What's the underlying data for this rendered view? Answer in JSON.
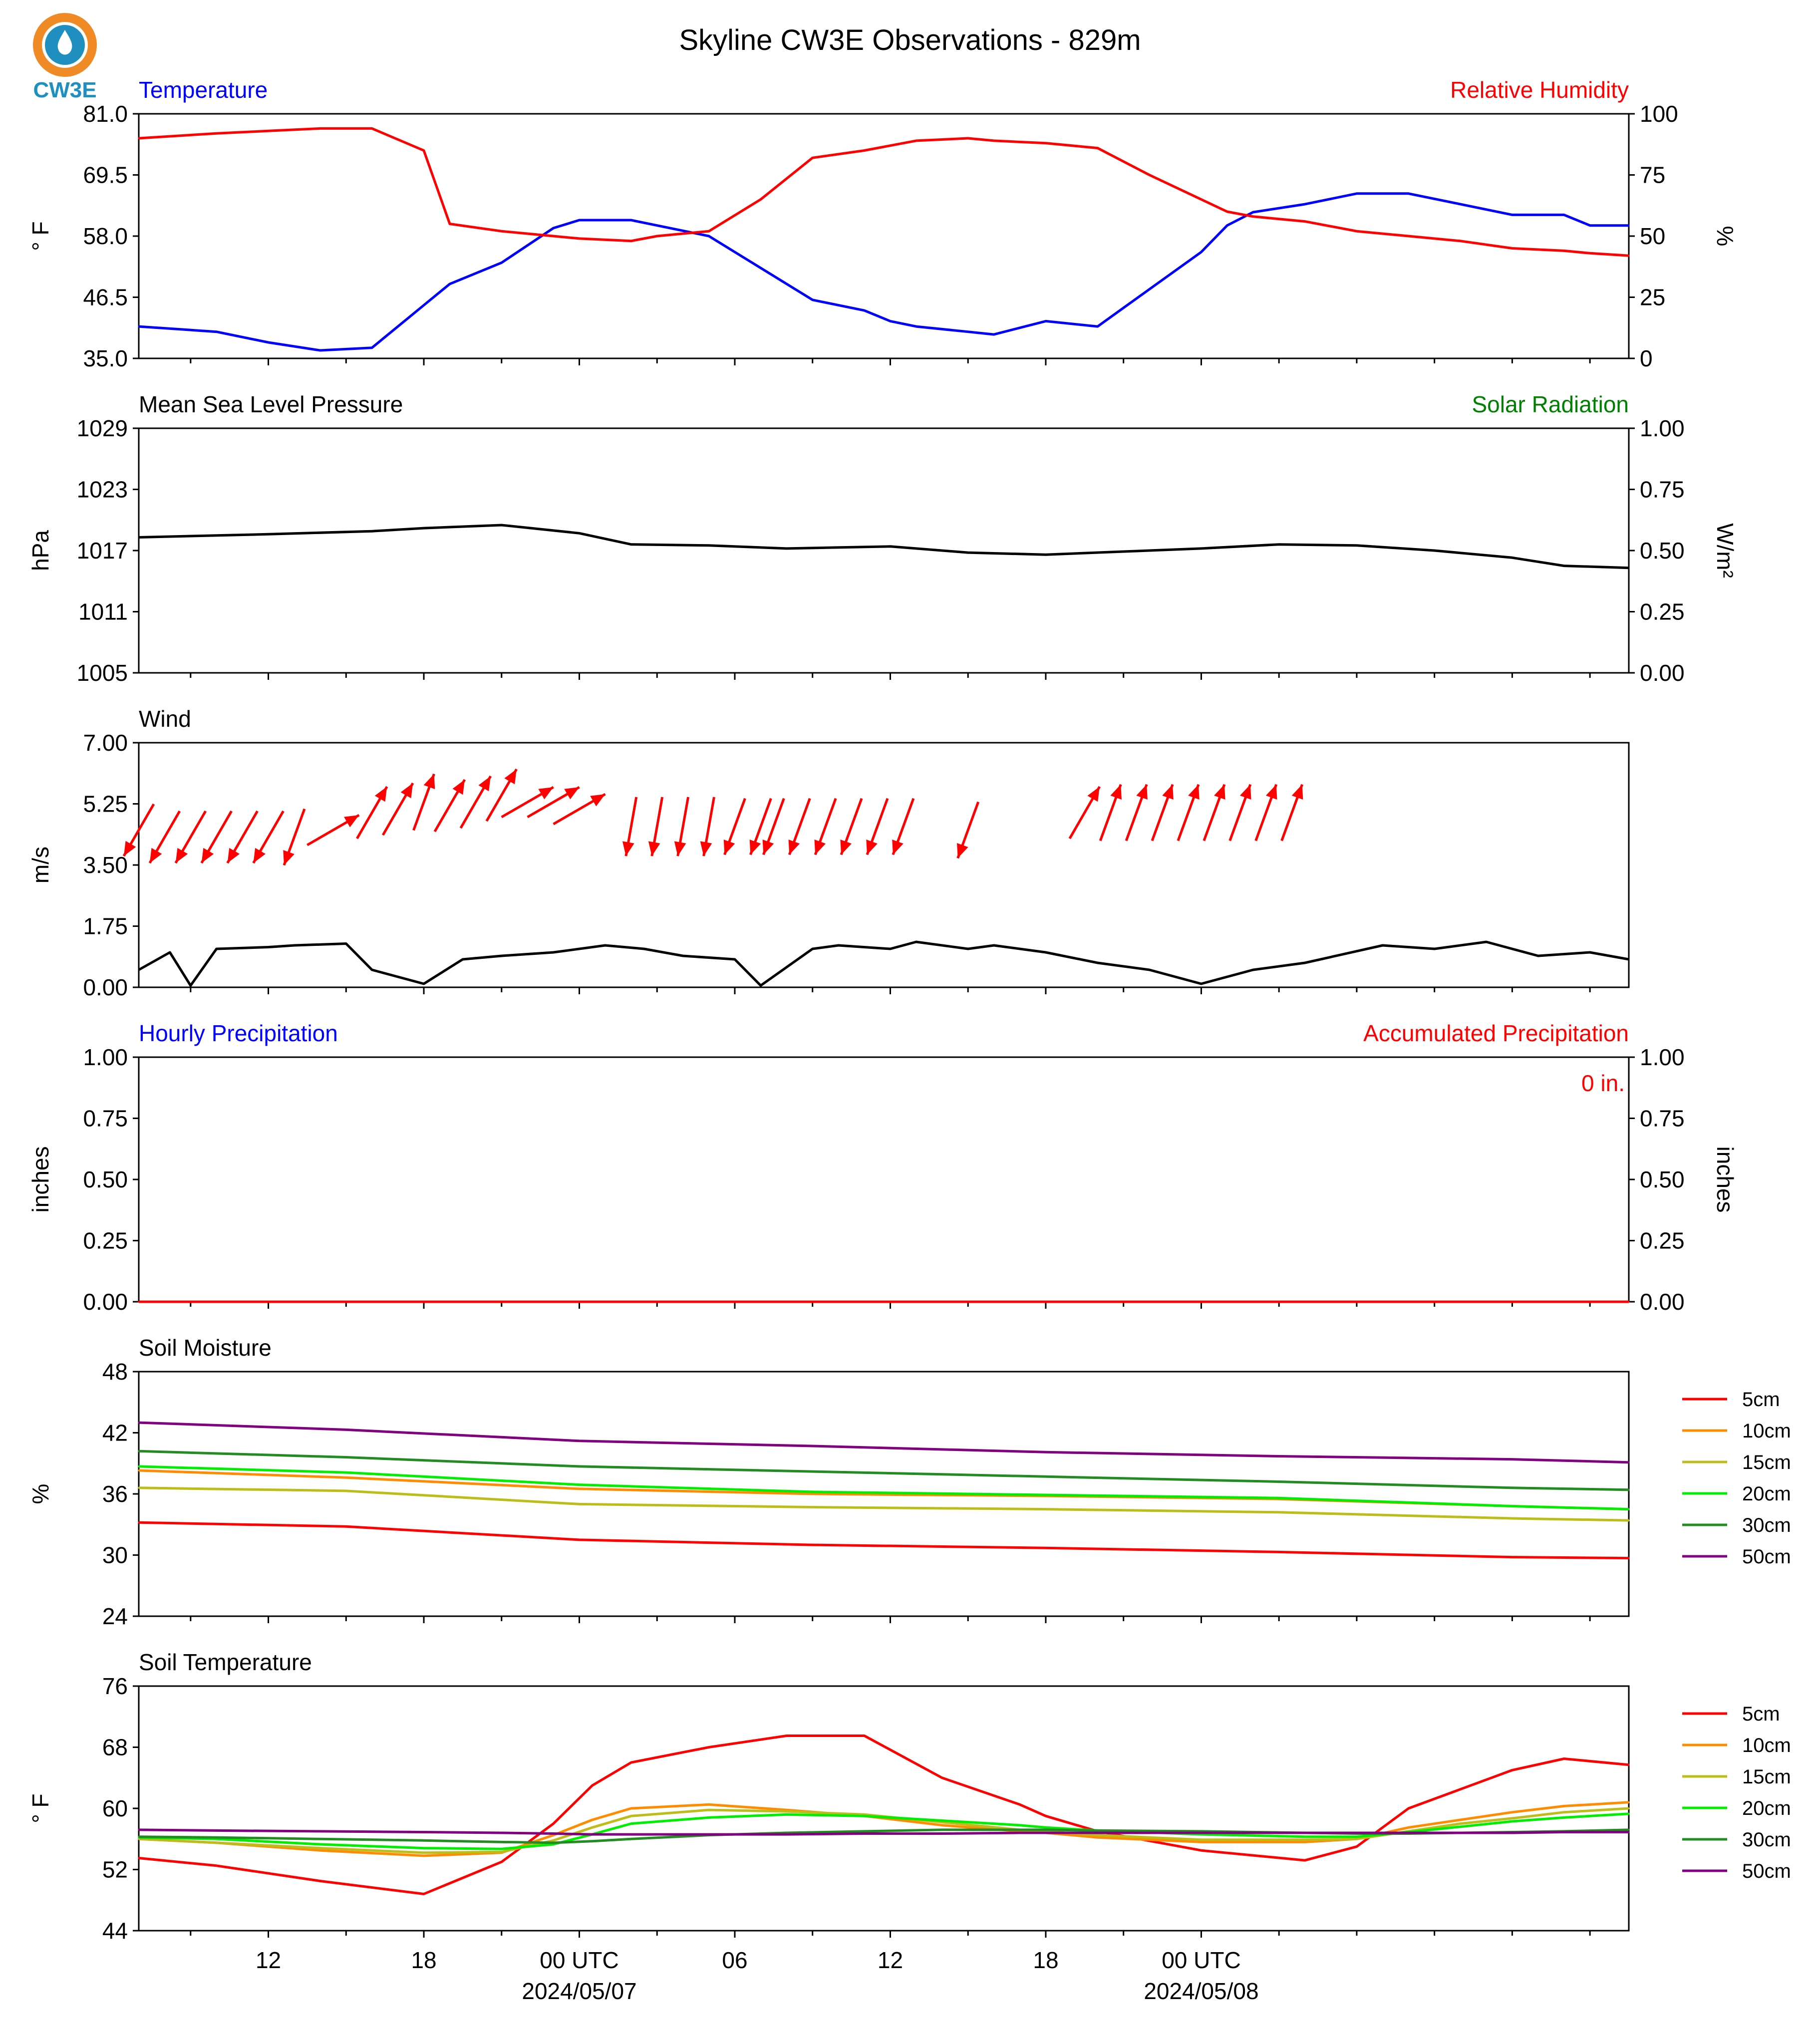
{
  "title": "Skyline CW3E Observations - 829m",
  "logo": {
    "text": "CW3E",
    "colors": {
      "ring": "#f08a24",
      "drop": "#1f8fbf"
    }
  },
  "colors": {
    "temperature": "#0000ff",
    "humidity": "#ff0000",
    "pressure": "#000000",
    "solar_label": "#008000",
    "wind": "#000000",
    "wind_arrow": "#ff0000",
    "hourly_label": "#0000ff",
    "accum_label": "#ff0000",
    "depth_5cm": "#ff0000",
    "depth_10cm": "#ff8c00",
    "depth_15cm": "#bdbd1a",
    "depth_20cm": "#00ee00",
    "depth_30cm": "#228b22",
    "depth_50cm": "#800080"
  },
  "x_axis": {
    "ticks": [
      "12",
      "18",
      "00 UTC",
      "06",
      "12",
      "18",
      "00 UTC"
    ],
    "dates": [
      "2024/05/07",
      "2024/05/08"
    ]
  },
  "chart_data": [
    {
      "type": "line",
      "title_left": "Temperature",
      "title_right": "Relative Humidity",
      "ylabel_left": "° F",
      "ylabel_right": "%",
      "ylim": [
        35.0,
        81.0
      ],
      "yticks": [
        "35.0",
        "46.5",
        "58.0",
        "69.5",
        "81.0"
      ],
      "ylim_right": [
        0,
        100
      ],
      "yticks_right": [
        "0",
        "25",
        "50",
        "75",
        "100"
      ],
      "x": [
        -17,
        -14,
        -12,
        -10,
        -8,
        -6,
        -5,
        -3,
        -1,
        0,
        2,
        3,
        5,
        7,
        9,
        11,
        12,
        13,
        15,
        16,
        18,
        20,
        22,
        24,
        25,
        26,
        28,
        30,
        32,
        34,
        36,
        38,
        39,
        40.5
      ],
      "series": [
        {
          "name": "Temperature",
          "axis": "left",
          "values": [
            41,
            40,
            38,
            36.5,
            37,
            45,
            49,
            53,
            59.5,
            61,
            61,
            60,
            58,
            52,
            46,
            44,
            42,
            41,
            40,
            39.5,
            42,
            41,
            48,
            55,
            60,
            62.5,
            64,
            66,
            66,
            64,
            62,
            62,
            60,
            60
          ]
        },
        {
          "name": "Relative Humidity",
          "axis": "right",
          "values": [
            90,
            92,
            93,
            94,
            94,
            85,
            55,
            52,
            50,
            49,
            48,
            50,
            52,
            65,
            82,
            85,
            87,
            89,
            90,
            89,
            88,
            86,
            75,
            65,
            60,
            58,
            56,
            52,
            50,
            48,
            45,
            44,
            43,
            42
          ]
        }
      ]
    },
    {
      "type": "line",
      "title_left": "Mean Sea Level Pressure",
      "title_right": "Solar Radiation",
      "ylabel_left": "hPa",
      "ylabel_right": "W/m²",
      "ylim": [
        1005,
        1029
      ],
      "yticks": [
        "1005",
        "1011",
        "1017",
        "1023",
        "1029"
      ],
      "ylim_right": [
        0,
        1
      ],
      "yticks_right": [
        "0.00",
        "0.25",
        "0.50",
        "0.75",
        "1.00"
      ],
      "x": [
        -17,
        -12,
        -8,
        -6,
        -3,
        0,
        2,
        5,
        8,
        12,
        15,
        18,
        21,
        24,
        27,
        30,
        33,
        36,
        38,
        40.5
      ],
      "series": [
        {
          "name": "Mean Sea Level Pressure",
          "axis": "left",
          "values": [
            1018.3,
            1018.6,
            1018.9,
            1019.2,
            1019.5,
            1018.7,
            1017.6,
            1017.5,
            1017.2,
            1017.4,
            1016.8,
            1016.6,
            1016.9,
            1017.2,
            1017.6,
            1017.5,
            1017.0,
            1016.3,
            1015.5,
            1015.3
          ]
        }
      ]
    },
    {
      "type": "line",
      "title_left": "Wind",
      "ylabel_left": "m/s",
      "ylim": [
        0,
        7
      ],
      "yticks": [
        "0.00",
        "1.75",
        "3.50",
        "5.25",
        "7.00"
      ],
      "x": [
        -17,
        -15.8,
        -15,
        -14,
        -12,
        -11,
        -9,
        -8,
        -6,
        -4.5,
        -3,
        -1,
        1,
        2.5,
        4,
        6,
        7,
        9,
        10,
        12,
        13,
        15,
        16,
        18,
        20,
        22,
        24,
        26,
        28,
        31,
        33,
        35,
        37,
        39,
        40.5
      ],
      "series": [
        {
          "name": "Wind",
          "axis": "left",
          "values": [
            0.5,
            1.0,
            0.05,
            1.1,
            1.15,
            1.2,
            1.25,
            0.5,
            0.1,
            0.8,
            0.9,
            1.0,
            1.2,
            1.1,
            0.9,
            0.8,
            0.05,
            1.1,
            1.2,
            1.1,
            1.3,
            1.1,
            1.2,
            1.0,
            0.7,
            0.5,
            0.1,
            0.5,
            0.7,
            1.2,
            1.1,
            1.3,
            0.9,
            1.0,
            0.8
          ]
        }
      ],
      "arrows": {
        "x": [
          -17,
          -16,
          -15,
          -14,
          -13,
          -12,
          -11,
          -9.5,
          -8,
          -7,
          -6,
          -5,
          -4,
          -3,
          -2,
          -1,
          0,
          2,
          3,
          4,
          5,
          6,
          7,
          7.5,
          8.5,
          9.5,
          10.5,
          11.5,
          12.5,
          15,
          19.5,
          20.5,
          21.5,
          22.5,
          23.5,
          24.5,
          25.5,
          26.5,
          27.5
        ],
        "y": [
          4.5,
          4.3,
          4.3,
          4.3,
          4.3,
          4.3,
          4.3,
          4.5,
          5.0,
          5.1,
          5.3,
          5.2,
          5.3,
          5.5,
          5.3,
          5.3,
          5.1,
          4.6,
          4.6,
          4.6,
          4.6,
          4.6,
          4.6,
          4.6,
          4.6,
          4.6,
          4.6,
          4.6,
          4.6,
          4.5,
          5.0,
          5.0,
          5.0,
          5.0,
          5.0,
          5.0,
          5.0,
          5.0,
          5.0
        ],
        "direction_deg": [
          210,
          210,
          210,
          210,
          210,
          210,
          200,
          60,
          30,
          30,
          20,
          30,
          30,
          30,
          60,
          60,
          60,
          190,
          190,
          190,
          190,
          200,
          200,
          200,
          200,
          200,
          200,
          200,
          200,
          200,
          30,
          20,
          20,
          20,
          20,
          20,
          20,
          20,
          20
        ]
      }
    },
    {
      "type": "line",
      "title_left": "Hourly Precipitation",
      "title_right": "Accumulated Precipitation",
      "ylabel_left": "inches",
      "ylabel_right": "inches",
      "annotation": "0 in.",
      "ylim": [
        0,
        1
      ],
      "yticks": [
        "0.00",
        "0.25",
        "0.50",
        "0.75",
        "1.00"
      ],
      "ylim_right": [
        0,
        1
      ],
      "yticks_right": [
        "0.00",
        "0.25",
        "0.50",
        "0.75",
        "1.00"
      ],
      "x": [
        -17,
        40.5
      ],
      "series": [
        {
          "name": "Hourly Precipitation",
          "axis": "left",
          "values": [
            0,
            0
          ]
        },
        {
          "name": "Accumulated Precipitation",
          "axis": "right",
          "values": [
            0,
            0
          ]
        }
      ]
    },
    {
      "type": "line",
      "title_left": "Soil Moisture",
      "ylabel_left": "%",
      "ylim": [
        24,
        48
      ],
      "yticks": [
        "24",
        "30",
        "36",
        "42",
        "48"
      ],
      "x": [
        -17,
        -9,
        0,
        9,
        18,
        27,
        36,
        40.5
      ],
      "series": [
        {
          "name": "5cm",
          "values": [
            33.2,
            32.8,
            31.5,
            31.0,
            30.7,
            30.3,
            29.8,
            29.7
          ]
        },
        {
          "name": "10cm",
          "values": [
            38.3,
            37.6,
            36.5,
            36.0,
            35.8,
            35.5,
            34.8,
            34.5
          ]
        },
        {
          "name": "15cm",
          "values": [
            36.6,
            36.3,
            35.0,
            34.7,
            34.5,
            34.2,
            33.6,
            33.4
          ]
        },
        {
          "name": "20cm",
          "values": [
            38.7,
            38.1,
            36.9,
            36.2,
            35.9,
            35.6,
            34.8,
            34.5
          ]
        },
        {
          "name": "30cm",
          "values": [
            40.2,
            39.6,
            38.7,
            38.2,
            37.7,
            37.2,
            36.6,
            36.4
          ]
        },
        {
          "name": "50cm",
          "values": [
            43.0,
            42.3,
            41.2,
            40.7,
            40.1,
            39.7,
            39.4,
            39.1
          ]
        }
      ]
    },
    {
      "type": "line",
      "title_left": "Soil Temperature",
      "ylabel_left": "° F",
      "ylim": [
        44,
        76
      ],
      "yticks": [
        "44",
        "52",
        "60",
        "68",
        "76"
      ],
      "x": [
        -17,
        -14,
        -10,
        -6,
        -3,
        -1,
        0.5,
        2,
        5,
        8,
        11,
        14,
        17,
        18,
        20,
        24,
        28,
        30,
        32,
        34,
        36,
        38,
        40.5
      ],
      "series": [
        {
          "name": "5cm",
          "values": [
            53.5,
            52.5,
            50.5,
            48.8,
            53.0,
            58.0,
            63.0,
            66.0,
            68.0,
            69.5,
            69.5,
            64.0,
            60.5,
            59.0,
            57.0,
            54.5,
            53.2,
            55.0,
            60.0,
            62.5,
            65.0,
            66.5,
            65.7
          ]
        },
        {
          "name": "10cm",
          "values": [
            56.0,
            55.5,
            54.5,
            53.8,
            54.2,
            56.5,
            58.5,
            60.0,
            60.5,
            59.8,
            59.0,
            57.8,
            57.0,
            56.8,
            56.2,
            55.6,
            55.6,
            56.0,
            57.5,
            58.5,
            59.5,
            60.3,
            60.8
          ]
        },
        {
          "name": "15cm",
          "values": [
            56.0,
            55.5,
            54.8,
            54.2,
            54.3,
            55.8,
            57.5,
            59.0,
            59.8,
            59.6,
            59.2,
            58.2,
            57.2,
            57.0,
            56.5,
            55.9,
            55.9,
            56.0,
            57.0,
            58.0,
            58.7,
            59.5,
            60.0
          ]
        },
        {
          "name": "20cm",
          "values": [
            56.2,
            56.0,
            55.3,
            54.8,
            54.7,
            55.3,
            56.6,
            58.0,
            58.8,
            59.2,
            59.0,
            58.4,
            57.8,
            57.5,
            57.1,
            56.6,
            56.3,
            56.3,
            56.9,
            57.6,
            58.3,
            58.8,
            59.3
          ]
        },
        {
          "name": "30cm",
          "values": [
            56.3,
            56.2,
            56.0,
            55.8,
            55.6,
            55.5,
            55.7,
            56.0,
            56.5,
            56.8,
            57.0,
            57.2,
            57.2,
            57.2,
            57.1,
            57.0,
            56.8,
            56.7,
            56.7,
            56.8,
            56.9,
            57.0,
            57.2
          ]
        },
        {
          "name": "50cm",
          "values": [
            57.2,
            57.1,
            57.0,
            56.9,
            56.8,
            56.7,
            56.6,
            56.6,
            56.6,
            56.6,
            56.7,
            56.7,
            56.8,
            56.8,
            56.8,
            56.8,
            56.8,
            56.8,
            56.8,
            56.8,
            56.8,
            56.9,
            56.9
          ]
        }
      ]
    }
  ]
}
